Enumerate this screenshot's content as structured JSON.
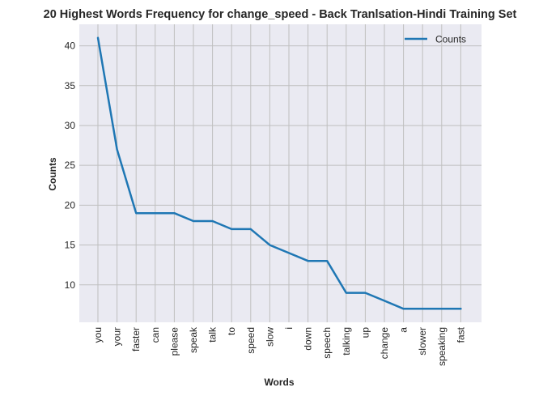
{
  "chart_data": {
    "type": "line",
    "title": "20 Highest Words Frequency for change_speed - Back Tranlsation-Hindi Training Set",
    "xlabel": "Words",
    "ylabel": "Counts",
    "categories": [
      "you",
      "your",
      "faster",
      "can",
      "please",
      "speak",
      "talk",
      "to",
      "speed",
      "slow",
      "i",
      "down",
      "speech",
      "talking",
      "up",
      "change",
      "a",
      "slower",
      "speaking",
      "fast"
    ],
    "series": [
      {
        "name": "Counts",
        "values": [
          41,
          27,
          19,
          19,
          19,
          18,
          18,
          17,
          17,
          15,
          14,
          13,
          13,
          9,
          9,
          8,
          7,
          7,
          7,
          7
        ]
      }
    ],
    "yticks": [
      10,
      15,
      20,
      25,
      30,
      35,
      40
    ],
    "ylim": [
      5.3,
      42.7
    ],
    "grid": true,
    "legend": "top-right",
    "colors": {
      "line": "#1f77b4",
      "plot_bg": "#eaeaf2",
      "grid": "#bfbfbf"
    }
  }
}
